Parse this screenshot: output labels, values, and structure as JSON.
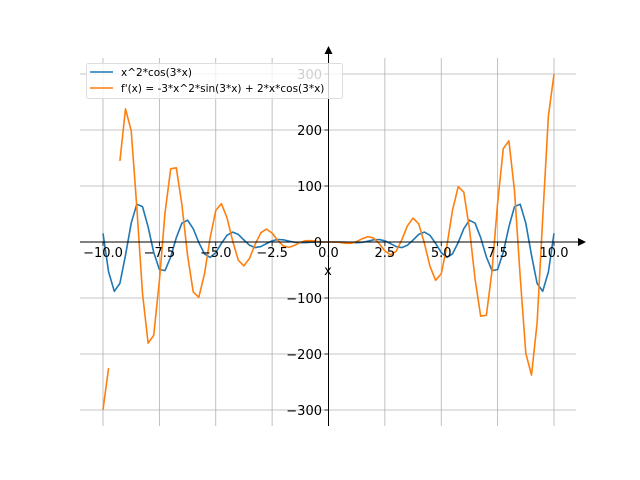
{
  "chart_data": {
    "type": "line",
    "title": "",
    "xlabel": "x",
    "ylabel": "",
    "xlim": [
      -11,
      11
    ],
    "ylim": [
      -330,
      330
    ],
    "grid": true,
    "legend_position": "top-left",
    "xticks": [
      -10.0,
      -7.5,
      -5.0,
      -2.5,
      0.0,
      2.5,
      5.0,
      7.5,
      10.0
    ],
    "xtick_labels": [
      "−10.0",
      "−7.5",
      "−5.0",
      "−2.5",
      "0.0",
      "2.5",
      "5.0",
      "7.5",
      "10.0"
    ],
    "yticks": [
      -300,
      -200,
      -100,
      0,
      100,
      200,
      300
    ],
    "ytick_labels": [
      "−300",
      "−200",
      "−100",
      "0",
      "100",
      "200",
      "300"
    ],
    "x_half": [
      0,
      0.25,
      0.5,
      0.75,
      1,
      1.25,
      1.5,
      1.75,
      2,
      2.25,
      2.5,
      2.75,
      3,
      3.25,
      3.5,
      3.75,
      4,
      4.25,
      4.5,
      4.75,
      5,
      5.25,
      5.5,
      5.75,
      6,
      6.25,
      6.5,
      6.75,
      7,
      7.25,
      7.5,
      7.75,
      8,
      8.25,
      8.5,
      8.75,
      9,
      9.25,
      9.5,
      9.75,
      10
    ],
    "series": [
      {
        "name": "x^2*cos(3*x)",
        "color": "#1f77b4",
        "symmetry": "even",
        "values_half": [
          0,
          0.046,
          0.018,
          -0.353,
          -0.99,
          -1.282,
          -0.474,
          1.567,
          3.841,
          4.521,
          2.166,
          -2.917,
          -8.2,
          -10.009,
          -5.825,
          3.538,
          13.502,
          17.759,
          12.047,
          -2.541,
          -18.993,
          -27.538,
          -21.251,
          -0.952,
          23.771,
          38.867,
          33.623,
          7.714,
          -26.837,
          -51.043,
          -49.123,
          -18.415,
          27.149,
          63.142,
          67.431,
          33.573,
          -23.66,
          -73.969,
          -87.958,
          -53.32,
          15.43
        ]
      },
      {
        "name": "f'(x) = -3*x^2*sin(3*x) + 2*x*cos(3*x)",
        "color": "#ff7f0e",
        "symmetry": "odd",
        "values_half": [
          0,
          0.238,
          -0.677,
          -2.255,
          -2.403,
          0.628,
          5.966,
          9.682,
          7.194,
          -2.816,
          -15.854,
          -23.053,
          -16.593,
          3.965,
          29.0,
          42.716,
          32.508,
          -1.538,
          -43.477,
          -68.324,
          -56.37,
          -7.018,
          56.866,
          98.817,
          89.032,
          24.086,
          -66.402,
          -132.433,
          -130.663,
          -51.705,
          69.098,
          166.751,
          180.662,
          91.551,
          -61.969,
          -198.746,
          -237.663,
          -144.747,
          42.077,
          225.168,
          299.486
        ],
        "gap_at_x": [
          -9.5
        ]
      }
    ]
  }
}
